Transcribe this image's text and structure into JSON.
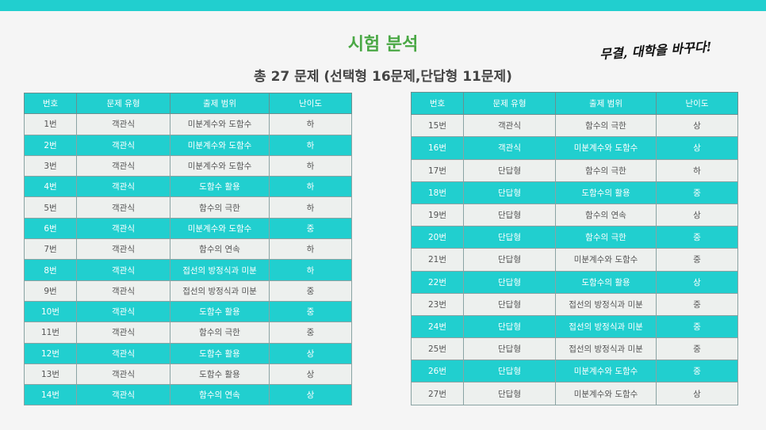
{
  "header": {
    "title": "시험 분석",
    "subtitle": "총 27 문제 (선택형 16문제,단답형 11문제)",
    "slogan": "무결, 대학을 바꾸다!"
  },
  "colors": {
    "accent": "#21cfcf",
    "title_green": "#4aa845",
    "row_light": "#edf0ee"
  },
  "table": {
    "headers": [
      "번호",
      "문제 유형",
      "출제 범위",
      "난이도"
    ],
    "left_rows": [
      [
        "1번",
        "객관식",
        "미분계수와 도함수",
        "하"
      ],
      [
        "2번",
        "객관식",
        "미분계수와 도함수",
        "하"
      ],
      [
        "3번",
        "객관식",
        "미분계수와 도함수",
        "하"
      ],
      [
        "4번",
        "객관식",
        "도함수 활용",
        "하"
      ],
      [
        "5번",
        "객관식",
        "함수의 극한",
        "하"
      ],
      [
        "6번",
        "객관식",
        "미분계수와 도함수",
        "중"
      ],
      [
        "7번",
        "객관식",
        "함수의 연속",
        "하"
      ],
      [
        "8번",
        "객관식",
        "접선의 방정식과 미분",
        "하"
      ],
      [
        "9번",
        "객관식",
        "접선의 방정식과 미분",
        "중"
      ],
      [
        "10번",
        "객관식",
        "도함수 활용",
        "중"
      ],
      [
        "11번",
        "객관식",
        "함수의 극한",
        "중"
      ],
      [
        "12번",
        "객관식",
        "도함수 활용",
        "상"
      ],
      [
        "13번",
        "객관식",
        "도함수 활용",
        "상"
      ],
      [
        "14번",
        "객관식",
        "함수의 연속",
        "상"
      ]
    ],
    "right_rows": [
      [
        "15번",
        "객관식",
        "함수의 극한",
        "상"
      ],
      [
        "16번",
        "객관식",
        "미분계수와 도함수",
        "상"
      ],
      [
        "17번",
        "단답형",
        "함수의 극한",
        "하"
      ],
      [
        "18번",
        "단답형",
        "도함수의 활용",
        "중"
      ],
      [
        "19번",
        "단답형",
        "함수의 연속",
        "상"
      ],
      [
        "20번",
        "단답형",
        "함수의 극한",
        "중"
      ],
      [
        "21번",
        "단답형",
        "미분계수와 도함수",
        "중"
      ],
      [
        "22번",
        "단답형",
        "도함수의 활용",
        "상"
      ],
      [
        "23번",
        "단답형",
        "접선의 방정식과 미분",
        "중"
      ],
      [
        "24번",
        "단답형",
        "접선의 방정식과 미분",
        "중"
      ],
      [
        "25번",
        "단답형",
        "접선의 방정식과 미분",
        "중"
      ],
      [
        "26번",
        "단답형",
        "미분계수와 도함수",
        "중"
      ],
      [
        "27번",
        "단답형",
        "미분계수와 도함수",
        "상"
      ]
    ]
  }
}
